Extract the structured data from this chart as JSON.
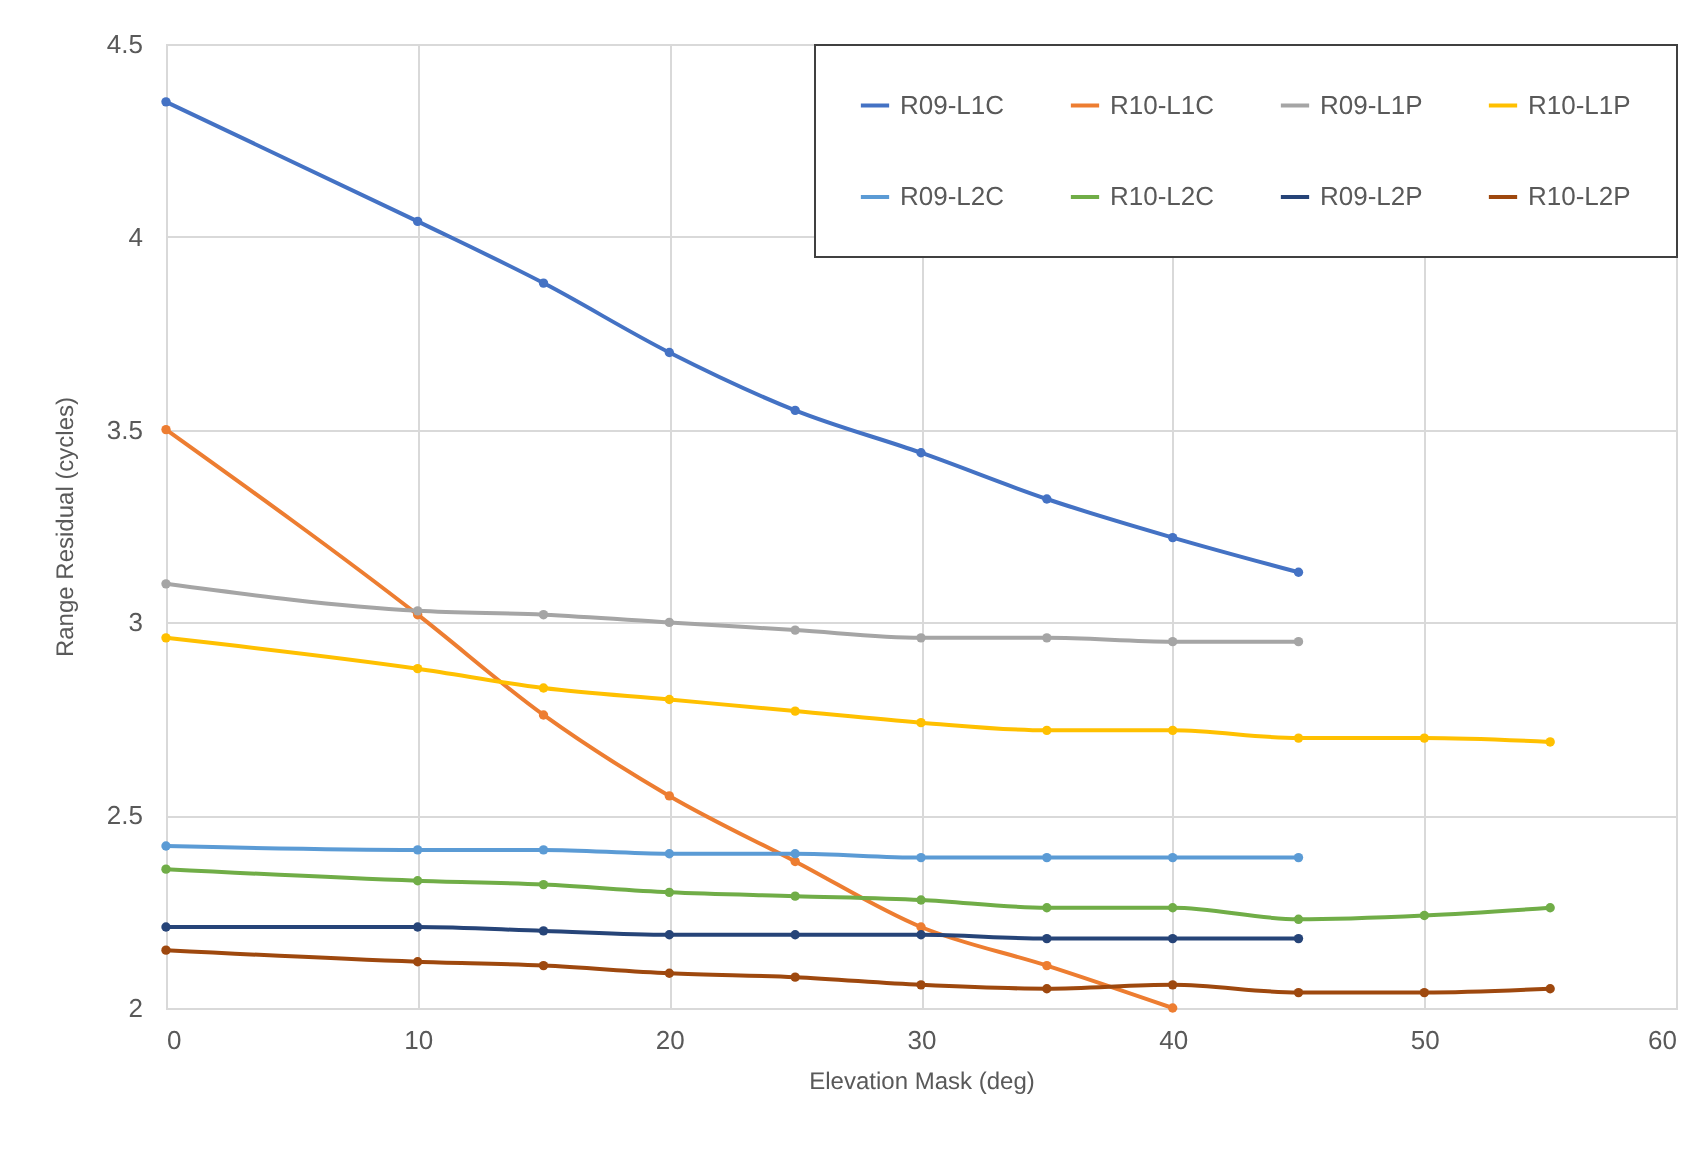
{
  "chart_data": {
    "type": "line",
    "xlabel": "Elevation Mask (deg)",
    "ylabel": "Range Residual (cycles)",
    "x": [
      0,
      10,
      15,
      20,
      25,
      30,
      35,
      40,
      45,
      50,
      55
    ],
    "series": [
      {
        "name": "R09-L1C",
        "color": "#4472c4",
        "values": [
          4.35,
          4.04,
          3.88,
          3.7,
          3.55,
          3.44,
          3.32,
          3.22,
          3.13,
          null,
          null
        ]
      },
      {
        "name": "R10-L1C",
        "color": "#ed7d31",
        "values": [
          3.5,
          3.02,
          2.76,
          2.55,
          2.38,
          2.21,
          2.11,
          2.0,
          null,
          null,
          null
        ]
      },
      {
        "name": "R09-L1P",
        "color": "#a5a5a5",
        "values": [
          3.1,
          3.03,
          3.02,
          3.0,
          2.98,
          2.96,
          2.96,
          2.95,
          2.95,
          null,
          null
        ]
      },
      {
        "name": "R10-L1P",
        "color": "#ffc000",
        "values": [
          2.96,
          2.88,
          2.83,
          2.8,
          2.77,
          2.74,
          2.72,
          2.72,
          2.7,
          2.7,
          2.69
        ]
      },
      {
        "name": "R09-L2C",
        "color": "#5b9bd5",
        "values": [
          2.42,
          2.41,
          2.41,
          2.4,
          2.4,
          2.39,
          2.39,
          2.39,
          2.39,
          null,
          null
        ]
      },
      {
        "name": "R10-L2C",
        "color": "#70ad47",
        "values": [
          2.36,
          2.33,
          2.32,
          2.3,
          2.29,
          2.28,
          2.26,
          2.26,
          2.23,
          2.24,
          2.26
        ]
      },
      {
        "name": "R09-L2P",
        "color": "#264478",
        "values": [
          2.21,
          2.21,
          2.2,
          2.19,
          2.19,
          2.19,
          2.18,
          2.18,
          2.18,
          null,
          null
        ]
      },
      {
        "name": "R10-L2P",
        "color": "#9e480e",
        "values": [
          2.15,
          2.12,
          2.11,
          2.09,
          2.08,
          2.06,
          2.05,
          2.06,
          2.04,
          2.04,
          2.05
        ]
      }
    ],
    "xlim": [
      0,
      60
    ],
    "xticks": [
      0,
      10,
      20,
      30,
      40,
      50,
      60
    ],
    "ylim": [
      2,
      4.5
    ],
    "yticks": [
      2,
      2.5,
      3,
      3.5,
      4,
      4.5
    ],
    "grid": true,
    "legend": "top right",
    "marker": "circle",
    "line_style": "solid"
  }
}
